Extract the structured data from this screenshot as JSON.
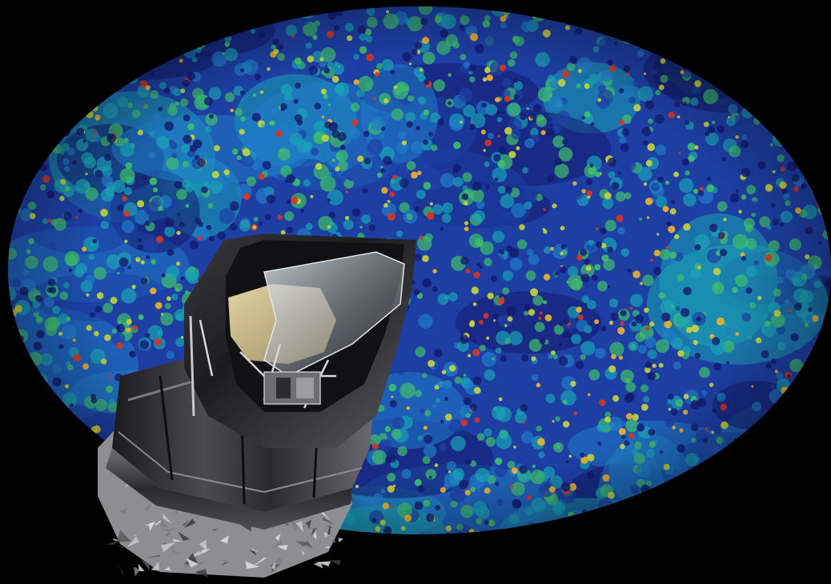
{
  "scene": {
    "background_color": "#000000",
    "subjects": [
      {
        "id": "cmb-sky-map",
        "kind": "all-sky temperature map (oval projection)"
      },
      {
        "id": "spacecraft",
        "kind": "space telescope illustration"
      }
    ],
    "cmb_palette": {
      "deep": "#141a6e",
      "cold": "#1d3fa4",
      "cool": "#1f7cc8",
      "mid": "#1aa3b5",
      "warm": "#3fbf6a",
      "warmer": "#c9d43a",
      "hot": "#f3b12a",
      "hottest": "#d8351f"
    },
    "spacecraft_palette": {
      "shield_dark": "#1b1b1e",
      "shield_mid": "#4a4a4f",
      "shield_light": "#9a9aa1",
      "mirror_gold": "#c9b98a",
      "baffle_glass": "#cfd6dc",
      "body_silver": "#b8b8bc"
    }
  }
}
